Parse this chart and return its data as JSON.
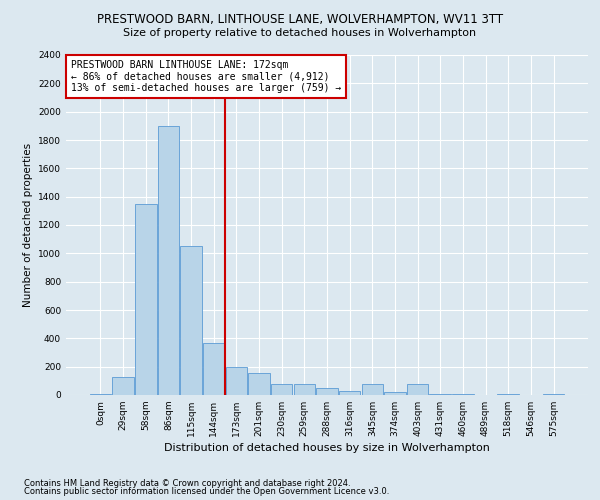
{
  "title": "PRESTWOOD BARN, LINTHOUSE LANE, WOLVERHAMPTON, WV11 3TT",
  "subtitle": "Size of property relative to detached houses in Wolverhampton",
  "xlabel": "Distribution of detached houses by size in Wolverhampton",
  "ylabel": "Number of detached properties",
  "footnote1": "Contains HM Land Registry data © Crown copyright and database right 2024.",
  "footnote2": "Contains public sector information licensed under the Open Government Licence v3.0.",
  "annotation_title": "PRESTWOOD BARN LINTHOUSE LANE: 172sqm",
  "annotation_line1": "← 86% of detached houses are smaller (4,912)",
  "annotation_line2": "13% of semi-detached houses are larger (759) →",
  "bar_categories": [
    "0sqm",
    "29sqm",
    "58sqm",
    "86sqm",
    "115sqm",
    "144sqm",
    "173sqm",
    "201sqm",
    "230sqm",
    "259sqm",
    "288sqm",
    "316sqm",
    "345sqm",
    "374sqm",
    "403sqm",
    "431sqm",
    "460sqm",
    "489sqm",
    "518sqm",
    "546sqm",
    "575sqm"
  ],
  "bar_heights": [
    5,
    130,
    1350,
    1900,
    1050,
    370,
    200,
    155,
    80,
    75,
    50,
    30,
    80,
    20,
    75,
    10,
    5,
    0,
    5,
    0,
    5
  ],
  "bar_color": "#b8d4e8",
  "bar_edge_color": "#5b9bd5",
  "vline_bin_index": 6,
  "vline_color": "#cc0000",
  "annotation_box_color": "#ffffff",
  "annotation_border_color": "#cc0000",
  "ylim": [
    0,
    2400
  ],
  "yticks": [
    0,
    200,
    400,
    600,
    800,
    1000,
    1200,
    1400,
    1600,
    1800,
    2000,
    2200,
    2400
  ],
  "background_color": "#dce8f0",
  "grid_color": "#ffffff",
  "title_fontsize": 8.5,
  "subtitle_fontsize": 8,
  "ylabel_fontsize": 7.5,
  "xlabel_fontsize": 8,
  "tick_fontsize": 6.5,
  "annotation_fontsize": 7,
  "footnote_fontsize": 6
}
